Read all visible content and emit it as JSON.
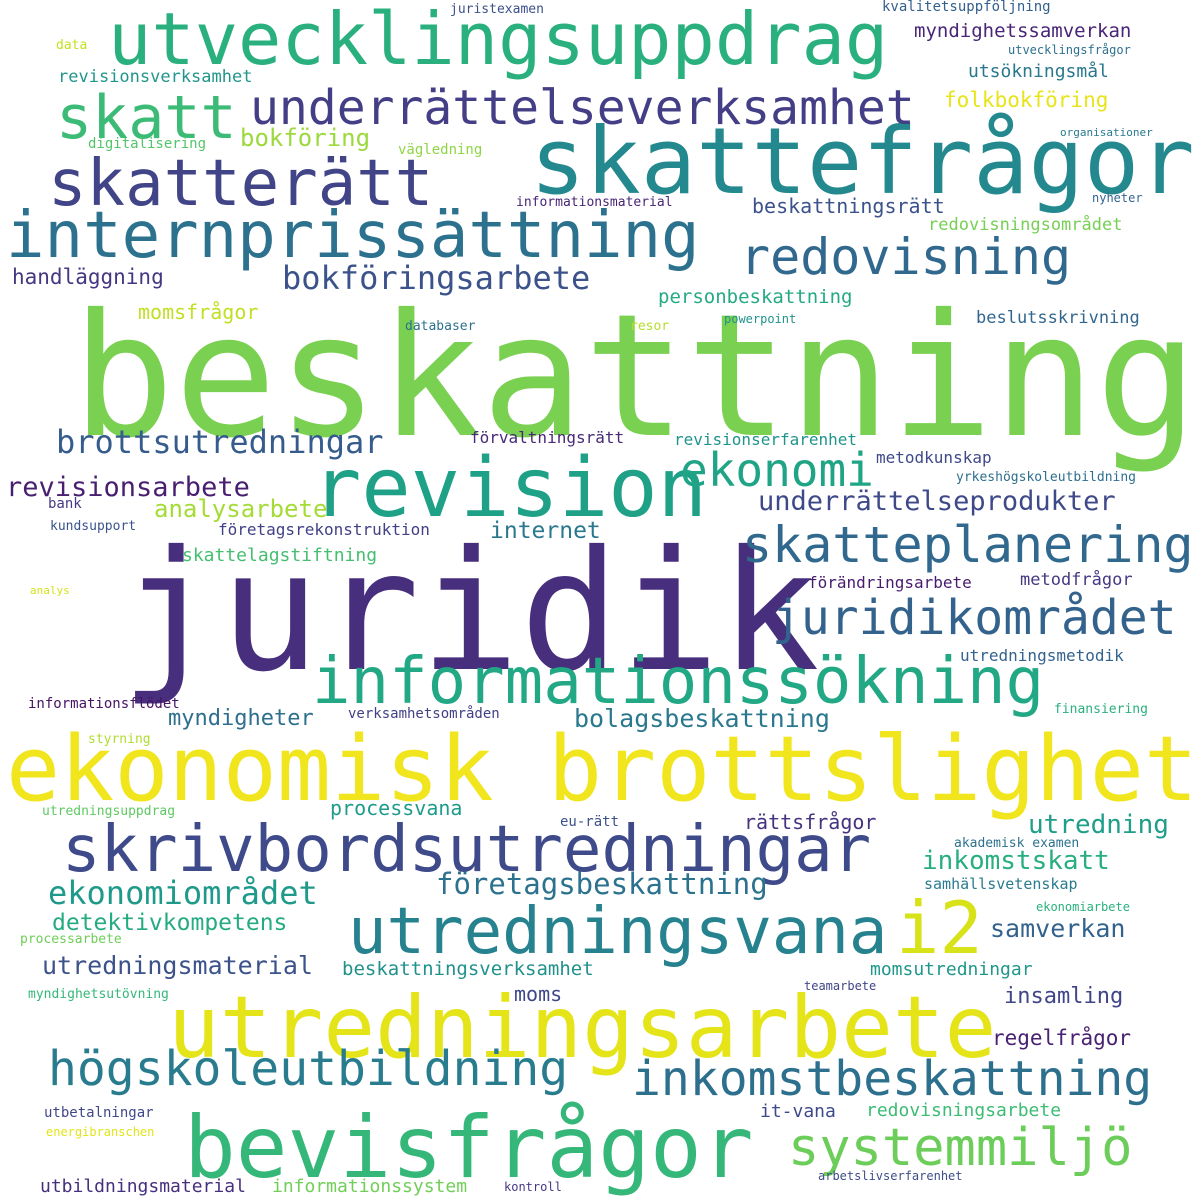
{
  "words": [
    {
      "text": "beskattning",
      "color": "#7ad151"
    },
    {
      "text": "juridik",
      "color": "#472f7d"
    },
    {
      "text": "ekonomisk brottslighet",
      "color": "#f1e51d"
    },
    {
      "text": "skattefrågor",
      "color": "#23898e"
    },
    {
      "text": "utredningsarbete",
      "color": "#e4e419"
    },
    {
      "text": "utvecklingsuppdrag",
      "color": "#2ab07f"
    },
    {
      "text": "revision",
      "color": "#1fa187"
    },
    {
      "text": "bevisfrågor",
      "color": "#35b779"
    },
    {
      "text": "skrivbordsutredningar",
      "color": "#3e4a89"
    },
    {
      "text": "internprissättning",
      "color": "#2c728e"
    },
    {
      "text": "informationssökning",
      "color": "#22a884"
    },
    {
      "text": "skatterätt",
      "color": "#414487"
    },
    {
      "text": "utredningsvana",
      "color": "#26828e"
    },
    {
      "text": "underrättelseverksamhet",
      "color": "#433e85"
    },
    {
      "text": "skatt",
      "color": "#3bbb75"
    },
    {
      "text": "inkomstbeskattning",
      "color": "#2d708e"
    },
    {
      "text": "högskoleutbildning",
      "color": "#287c8e"
    },
    {
      "text": "redovisning",
      "color": "#31688e"
    },
    {
      "text": "skatteplanering",
      "color": "#31688e"
    },
    {
      "text": "juridikområdet",
      "color": "#33638d"
    },
    {
      "text": "i2",
      "color": "#d8e219"
    },
    {
      "text": "systemmiljö",
      "color": "#6ccd5a"
    },
    {
      "text": "ekonomi",
      "color": "#20a486"
    },
    {
      "text": "brottsutredningar",
      "color": "#365c8d"
    },
    {
      "text": "bokföringsarbete",
      "color": "#3b528b"
    },
    {
      "text": "ekonomiområdet",
      "color": "#1f9a8a"
    },
    {
      "text": "företagsbeskattning",
      "color": "#2c728e"
    },
    {
      "text": "revisionsarbete",
      "color": "#481f70"
    },
    {
      "text": "bolagsbeskattning",
      "color": "#2a788e"
    },
    {
      "text": "underrättelseprodukter",
      "color": "#3e4989"
    },
    {
      "text": "utredningsmaterial",
      "color": "#3b528b"
    },
    {
      "text": "inkomstskatt",
      "color": "#29af7f"
    },
    {
      "text": "utredning",
      "color": "#1f9e89"
    },
    {
      "text": "detektivkompetens",
      "color": "#25ab82"
    },
    {
      "text": "samverkan",
      "color": "#33638d"
    },
    {
      "text": "bokföring",
      "color": "#9bd93c"
    },
    {
      "text": "analysarbete",
      "color": "#a5db36"
    },
    {
      "text": "myndigheter",
      "color": "#2e6f8e"
    },
    {
      "text": "beskattningsverksamhet",
      "color": "#21918c"
    },
    {
      "text": "handläggning",
      "color": "#453781"
    },
    {
      "text": "personbeskattning",
      "color": "#24aa83"
    },
    {
      "text": "momsfrågor",
      "color": "#c2df23"
    },
    {
      "text": "folkbokföring",
      "color": "#e7e419"
    },
    {
      "text": "myndighetssamverkan",
      "color": "#482576"
    },
    {
      "text": "beskattningsrätt",
      "color": "#3b528b"
    },
    {
      "text": "internet",
      "color": "#2a788e"
    },
    {
      "text": "momsutredningar",
      "color": "#1f988b"
    },
    {
      "text": "insamling",
      "color": "#404588"
    },
    {
      "text": "regelfrågor",
      "color": "#482173"
    },
    {
      "text": "rättsfrågor",
      "color": "#46327e"
    },
    {
      "text": "processvana",
      "color": "#1e9b8a"
    },
    {
      "text": "moms",
      "color": "#3f4788"
    },
    {
      "text": "it-vana",
      "color": "#3e4a89"
    },
    {
      "text": "redovisningsarbete",
      "color": "#3cbc74"
    },
    {
      "text": "utbildningsmaterial",
      "color": "#46307e"
    },
    {
      "text": "informationssystem",
      "color": "#70cf57"
    },
    {
      "text": "skattelagstiftning",
      "color": "#44bf70"
    },
    {
      "text": "revisionsverksamhet",
      "color": "#1f958b"
    },
    {
      "text": "utsökningsmål",
      "color": "#2a788e"
    },
    {
      "text": "beslutsskrivning",
      "color": "#31678e"
    },
    {
      "text": "redovisningsområdet",
      "color": "#75d054"
    },
    {
      "text": "förändringsarbete",
      "color": "#481b6d"
    },
    {
      "text": "metodfrågor",
      "color": "#453882"
    },
    {
      "text": "utredningsmetodik",
      "color": "#33638d"
    },
    {
      "text": "revisionserfarenhet",
      "color": "#1f948c"
    },
    {
      "text": "förvaltningsrätt",
      "color": "#482878"
    },
    {
      "text": "metodkunskap",
      "color": "#3f4889"
    },
    {
      "text": "företagsrekonstruktion",
      "color": "#424086"
    },
    {
      "text": "informationsflödet",
      "color": "#471365"
    },
    {
      "text": "verksamhetsområden",
      "color": "#424086"
    },
    {
      "text": "juristexamen",
      "color": "#3c508b"
    },
    {
      "text": "kvalitetsuppföljning",
      "color": "#34608d"
    },
    {
      "text": "utvecklingsfrågor",
      "color": "#2d718e"
    },
    {
      "text": "digitalisering",
      "color": "#52c569"
    },
    {
      "text": "vägledning",
      "color": "#8ed645"
    },
    {
      "text": "informationsmaterial",
      "color": "#482576"
    },
    {
      "text": "organisationer",
      "color": "#29798e"
    },
    {
      "text": "nyheter",
      "color": "#32648e"
    },
    {
      "text": "databaser",
      "color": "#2d708e"
    },
    {
      "text": "resor",
      "color": "#b5de2b"
    },
    {
      "text": "powerpoint",
      "color": "#21918c"
    },
    {
      "text": "bank",
      "color": "#443983"
    },
    {
      "text": "kundsupport",
      "color": "#3a538b"
    },
    {
      "text": "yrkeshögskoleutbildning",
      "color": "#2e6e8e"
    },
    {
      "text": "analys",
      "color": "#d5e21a"
    },
    {
      "text": "finansiering",
      "color": "#2ab07f"
    },
    {
      "text": "styrning",
      "color": "#b0dd2f"
    },
    {
      "text": "utredningsuppdrag",
      "color": "#5ec962"
    },
    {
      "text": "eu-rätt",
      "color": "#3b528b"
    },
    {
      "text": "akademisk examen",
      "color": "#2c728e"
    },
    {
      "text": "samhällsvetenskap",
      "color": "#287c8e"
    },
    {
      "text": "ekonomiarbete",
      "color": "#2ab07f"
    },
    {
      "text": "processarbete",
      "color": "#6ece58"
    },
    {
      "text": "myndighetsutövning",
      "color": "#35b779"
    },
    {
      "text": "teamarbete",
      "color": "#404588"
    },
    {
      "text": "utbetalningar",
      "color": "#3f4889"
    },
    {
      "text": "energibranschen",
      "color": "#e2e418"
    },
    {
      "text": "arbetslivserfarenhet",
      "color": "#3d4e8a"
    },
    {
      "text": "kontroll",
      "color": "#443983"
    },
    {
      "text": "data",
      "color": "#c5e021"
    }
  ]
}
